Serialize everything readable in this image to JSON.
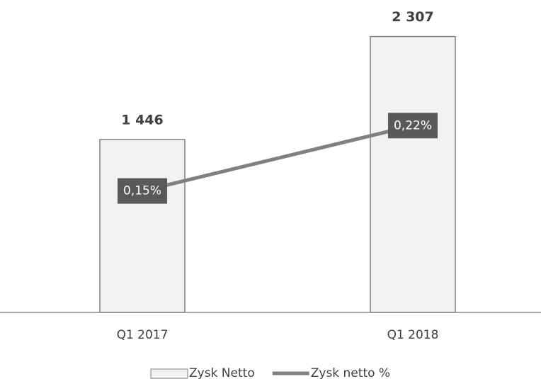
{
  "chart_data": {
    "type": "bar",
    "categories": [
      "Q1 2017",
      "Q1 2018"
    ],
    "series": [
      {
        "name": "Zysk Netto",
        "type": "bar",
        "color": "#f2f2f2",
        "values": [
          1446,
          2307
        ],
        "value_labels": [
          "1 446",
          "2 307"
        ]
      },
      {
        "name": "Zysk netto %",
        "type": "line",
        "axis": "y2",
        "color": "#808080",
        "values": [
          0.15,
          0.22
        ],
        "value_labels": [
          "0,15%",
          "0,22%"
        ]
      }
    ],
    "ylim": [
      0,
      2500
    ],
    "y2lim": [
      0.02,
      0.34
    ],
    "legend": "bottom"
  }
}
